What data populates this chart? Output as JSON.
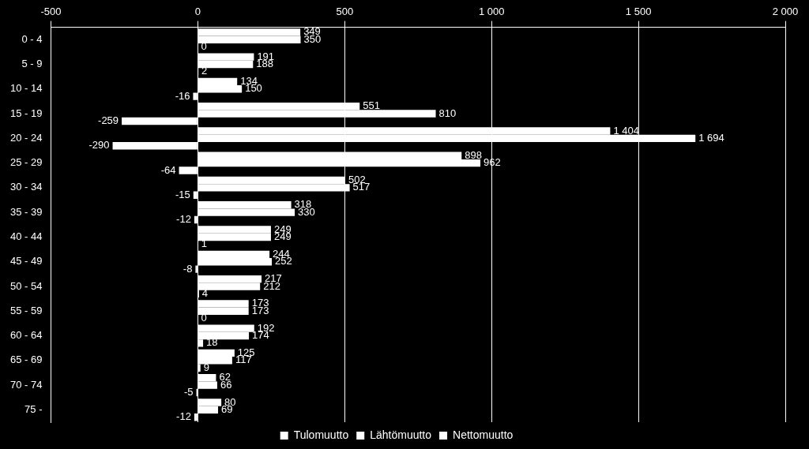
{
  "chart_data": {
    "type": "bar",
    "orientation": "horizontal",
    "categories": [
      "0 - 4",
      "5 - 9",
      "10 - 14",
      "15 - 19",
      "20 - 24",
      "25 - 29",
      "30 - 34",
      "35 - 39",
      "40 - 44",
      "45 - 49",
      "50 - 54",
      "55 - 59",
      "60 - 64",
      "65 - 69",
      "70 - 74",
      "75 -"
    ],
    "series": [
      {
        "name": "Tulomuutto",
        "color": "#ffffff",
        "values": [
          349,
          191,
          134,
          551,
          1404,
          898,
          502,
          318,
          249,
          244,
          217,
          173,
          192,
          125,
          62,
          80
        ]
      },
      {
        "name": "Lähtömuutto",
        "color": "#ffffff",
        "values": [
          350,
          188,
          150,
          810,
          1694,
          962,
          517,
          330,
          249,
          252,
          212,
          173,
          174,
          117,
          66,
          69
        ]
      },
      {
        "name": "Nettomuutto",
        "color": "#ffffff",
        "values": [
          0,
          2,
          -16,
          -259,
          -290,
          -64,
          -15,
          -12,
          1,
          -8,
          4,
          0,
          18,
          9,
          -5,
          -12
        ]
      }
    ],
    "xlim": [
      -500,
      2000
    ],
    "xticks": [
      -500,
      0,
      500,
      {
        "value": 1000,
        "label": "1 000"
      },
      {
        "value": 1500,
        "label": "1 500"
      },
      {
        "value": 2000,
        "label": "2 000"
      }
    ],
    "grid": "x",
    "legend": "bottom",
    "data_labels": true
  }
}
